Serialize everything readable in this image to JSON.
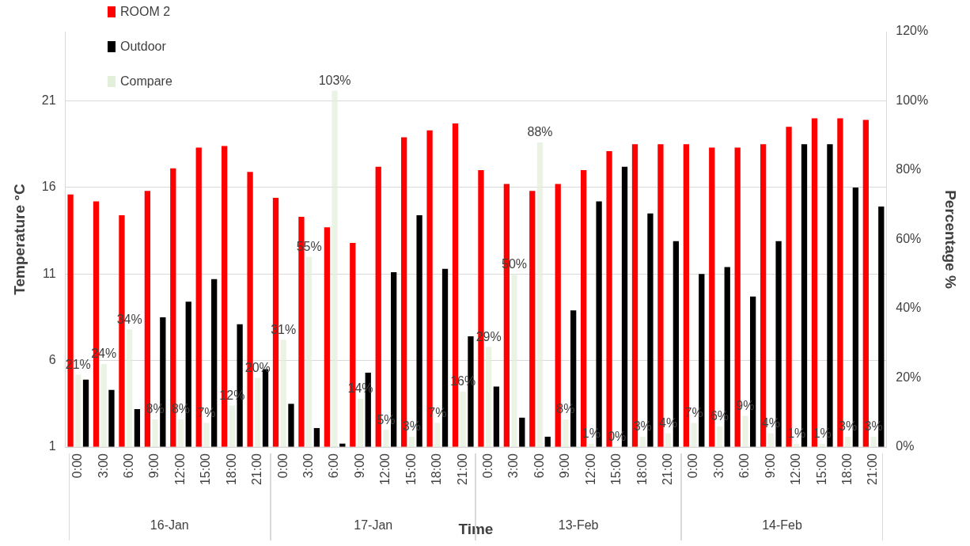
{
  "chart_data": {
    "type": "bar",
    "xlabel": "Time",
    "ylabel": "Temperature °C",
    "y2label": "Percentage %",
    "categories": [
      "0:00",
      "3:00",
      "6:00",
      "9:00",
      "12:00",
      "15:00",
      "18:00",
      "21:00",
      "0:00",
      "3:00",
      "6:00",
      "9:00",
      "12:00",
      "15:00",
      "18:00",
      "21:00",
      "0:00",
      "3:00",
      "6:00",
      "9:00",
      "12:00",
      "15:00",
      "18:00",
      "21:00",
      "0:00",
      "3:00",
      "6:00",
      "9:00",
      "12:00",
      "15:00",
      "18:00",
      "21:00"
    ],
    "annotations": [
      "16-Jan",
      "17-Jan",
      "13-Feb",
      "14-Feb"
    ],
    "series": [
      {
        "name": "ROOM 2",
        "color": "#ff0000",
        "values": [
          15.6,
          15.2,
          14.4,
          15.8,
          17.1,
          18.3,
          18.4,
          16.9,
          15.4,
          14.3,
          13.7,
          12.8,
          17.2,
          18.9,
          19.3,
          19.7,
          17.0,
          16.2,
          15.8,
          16.2,
          17.0,
          18.1,
          18.5,
          18.5,
          18.5,
          18.3,
          18.3,
          18.5,
          19.5,
          20.0,
          20.0,
          19.9
        ]
      },
      {
        "name": "Compare",
        "color": "#e2efd9",
        "axis": "y2",
        "values": [
          21,
          24,
          34,
          8,
          8,
          7,
          12,
          20,
          31,
          55,
          103,
          14,
          5,
          3,
          7,
          16,
          29,
          50,
          88,
          8,
          1,
          0,
          3,
          4,
          7,
          6,
          9,
          4,
          1,
          1,
          3,
          3
        ],
        "value_labels": [
          "21%",
          "24%",
          "34%",
          "8%",
          "8%",
          "7%",
          "12%",
          "20%",
          "31%",
          "55%",
          "103%",
          "14%",
          "5%",
          "3%",
          "7%",
          "16%",
          "29%",
          "50%",
          "88%",
          "8%",
          "1%",
          "0%",
          "3%",
          "4%",
          "7%",
          "6%",
          "9%",
          "4%",
          "1%",
          "1%",
          "3%",
          "3%"
        ]
      },
      {
        "name": "Outdoor",
        "color": "#000000",
        "values": [
          4.9,
          4.3,
          3.2,
          8.5,
          9.4,
          10.7,
          8.1,
          5.5,
          3.5,
          2.1,
          1.2,
          5.3,
          11.1,
          14.4,
          11.3,
          7.4,
          4.5,
          2.7,
          1.6,
          8.9,
          15.2,
          17.2,
          14.5,
          12.9,
          11.0,
          11.4,
          9.7,
          12.9,
          18.5,
          18.5,
          16.0,
          14.9
        ]
      }
    ],
    "ylim": [
      1,
      25
    ],
    "yticks": [
      1,
      6,
      11,
      16,
      21
    ],
    "y2lim": [
      0,
      120
    ],
    "y2ticks": [
      {
        "value": 0,
        "label": "0%"
      },
      {
        "value": 20,
        "label": "20%"
      },
      {
        "value": 40,
        "label": "40%"
      },
      {
        "value": 60,
        "label": "60%"
      },
      {
        "value": 80,
        "label": "80%"
      },
      {
        "value": 100,
        "label": "100%"
      },
      {
        "value": 120,
        "label": "120%"
      }
    ],
    "grid": "y",
    "legend": "top left"
  }
}
